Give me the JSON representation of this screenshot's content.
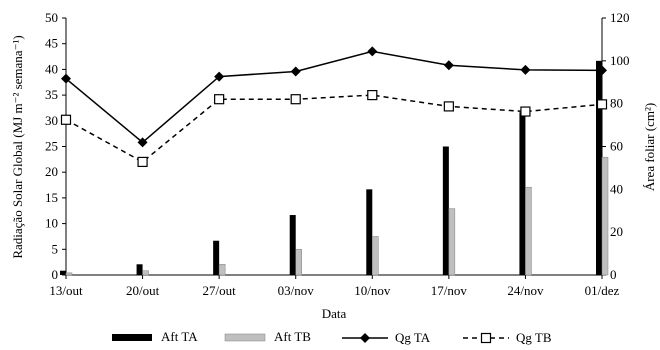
{
  "chart_data": {
    "type": "bar",
    "title": "",
    "xlabel": "Data",
    "ylabel_left": "Radiação Solar Global (MJ m⁻² semana⁻¹)",
    "ylabel_right": "Área foliar (cm²)",
    "categories": [
      "13/out",
      "20/out",
      "27/out",
      "03/nov",
      "10/nov",
      "17/nov",
      "24/nov",
      "01/dez"
    ],
    "y_left": {
      "min": 0,
      "max": 50,
      "ticks": [
        "0",
        "5",
        "10",
        "15",
        "20",
        "25",
        "30",
        "35",
        "40",
        "45",
        "50"
      ]
    },
    "y_right": {
      "min": 0,
      "max": 120,
      "ticks": [
        "0",
        "20",
        "40",
        "60",
        "80",
        "100",
        "120"
      ]
    },
    "bar_series": [
      {
        "name": "Aft  TA",
        "axis": "right",
        "color": "#000000",
        "values": [
          2,
          5,
          16,
          28,
          40,
          60,
          76,
          100
        ]
      },
      {
        "name": "Aft  TB",
        "axis": "right",
        "color": "#bfbfbf",
        "values": [
          1,
          2,
          5,
          12,
          18,
          31,
          41,
          55
        ]
      }
    ],
    "line_series": [
      {
        "name": "Qg TA",
        "axis": "left",
        "style": "solid",
        "marker": "diamond",
        "values": [
          38.2,
          25.8,
          38.6,
          39.6,
          43.5,
          40.8,
          39.9,
          39.8
        ]
      },
      {
        "name": "Qg TB",
        "axis": "left",
        "style": "dashed",
        "marker": "square-open",
        "values": [
          30.2,
          22.0,
          34.2,
          34.2,
          35.0,
          32.8,
          31.8,
          33.2
        ]
      }
    ],
    "legend": {
      "position": "bottom"
    },
    "grid": false
  }
}
